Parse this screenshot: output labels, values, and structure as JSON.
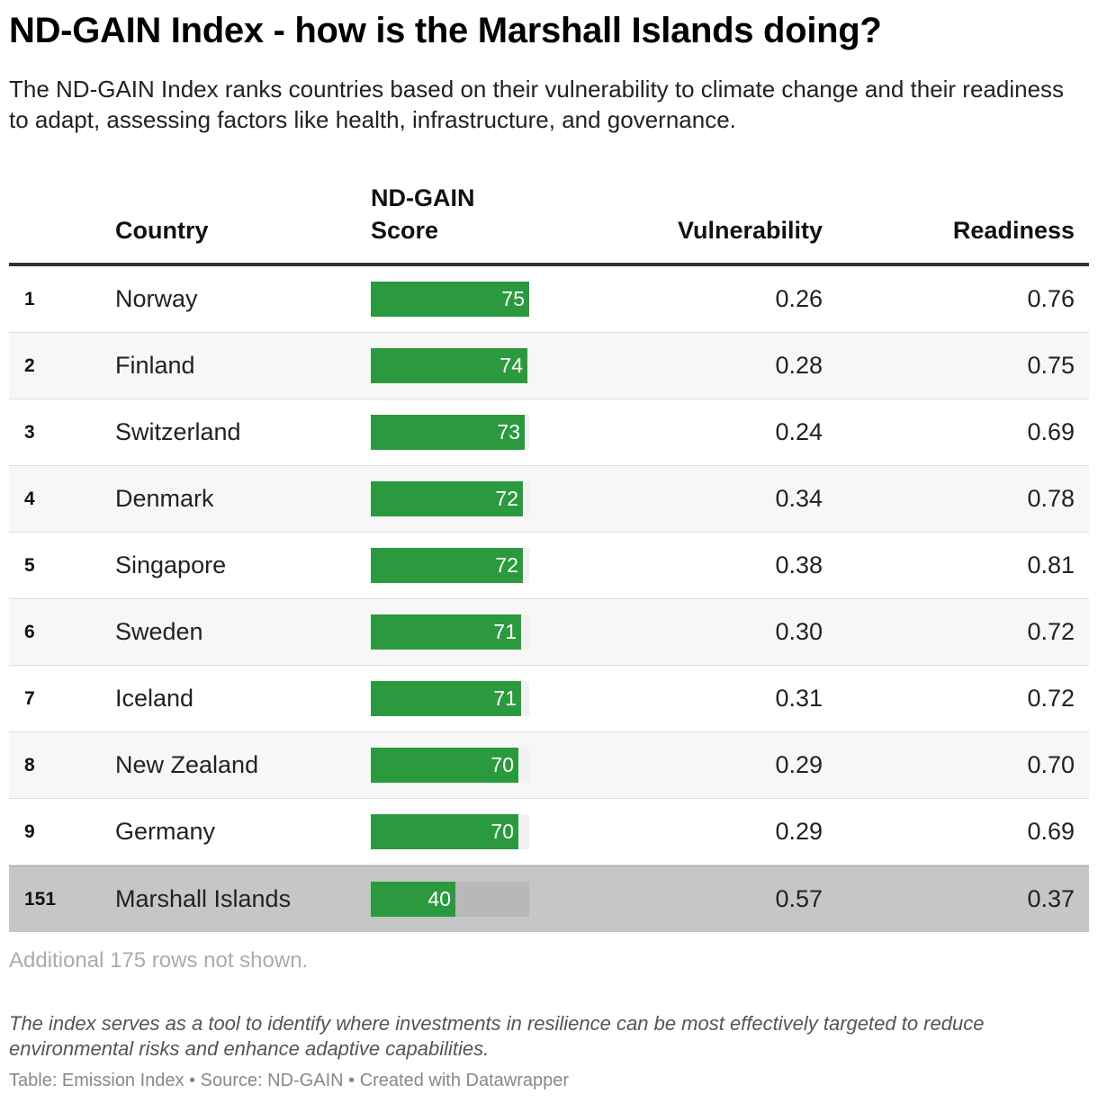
{
  "title": "ND-GAIN Index - how is the Marshall Islands doing?",
  "subtitle": "The ND-GAIN Index ranks countries based on their vulnerability to climate change and their readiness to adapt, assessing factors like health, infrastructure, and governance.",
  "columns": {
    "country": "Country",
    "score_line1": "ND-GAIN",
    "score_line2": "Score",
    "vulnerability": "Vulnerability",
    "readiness": "Readiness"
  },
  "chart_data": {
    "type": "table",
    "bar_scale_max": 75,
    "rows": [
      {
        "rank": "1",
        "country": "Norway",
        "score": 75,
        "vulnerability": "0.26",
        "readiness": "0.76"
      },
      {
        "rank": "2",
        "country": "Finland",
        "score": 74,
        "vulnerability": "0.28",
        "readiness": "0.75"
      },
      {
        "rank": "3",
        "country": "Switzerland",
        "score": 73,
        "vulnerability": "0.24",
        "readiness": "0.69"
      },
      {
        "rank": "4",
        "country": "Denmark",
        "score": 72,
        "vulnerability": "0.34",
        "readiness": "0.78"
      },
      {
        "rank": "5",
        "country": "Singapore",
        "score": 72,
        "vulnerability": "0.38",
        "readiness": "0.81"
      },
      {
        "rank": "6",
        "country": "Sweden",
        "score": 71,
        "vulnerability": "0.30",
        "readiness": "0.72"
      },
      {
        "rank": "7",
        "country": "Iceland",
        "score": 71,
        "vulnerability": "0.31",
        "readiness": "0.72"
      },
      {
        "rank": "8",
        "country": "New Zealand",
        "score": 70,
        "vulnerability": "0.29",
        "readiness": "0.70"
      },
      {
        "rank": "9",
        "country": "Germany",
        "score": 70,
        "vulnerability": "0.29",
        "readiness": "0.69"
      },
      {
        "rank": "151",
        "country": "Marshall Islands",
        "score": 40,
        "vulnerability": "0.57",
        "readiness": "0.37",
        "highlighted": true
      }
    ],
    "bar_color": "#2b9a3f"
  },
  "more_rows_text": "Additional 175 rows not shown.",
  "note": "The index serves as a tool to identify where investments in resilience can be most effectively targeted to reduce environmental risks and enhance adaptive capabilities.",
  "footer": "Table: Emission Index • Source: ND-GAIN • Created with Datawrapper"
}
